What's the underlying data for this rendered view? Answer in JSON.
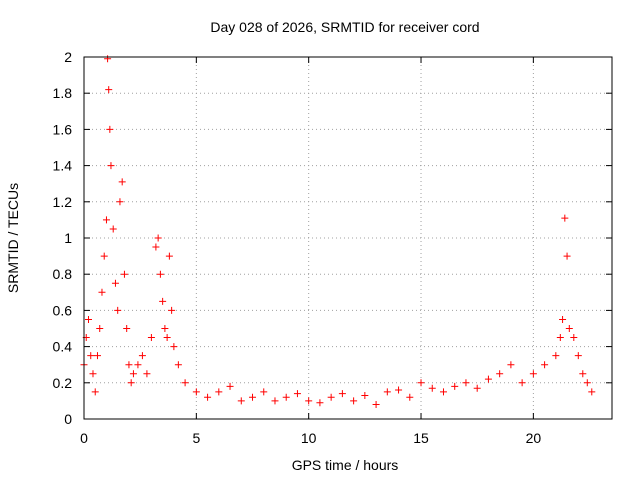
{
  "chart_data": {
    "type": "scatter",
    "title": "Day 028 of 2026, SRMTID for receiver cord",
    "xlabel": "GPS time / hours",
    "ylabel": "SRMTID / TECUs",
    "xlim": [
      0,
      23.5
    ],
    "ylim": [
      0,
      2
    ],
    "xticks": [
      0,
      5,
      10,
      15,
      20
    ],
    "xtick_labels": [
      "0",
      "5",
      "10",
      "15",
      "20"
    ],
    "yticks": [
      0,
      0.2,
      0.4,
      0.6,
      0.8,
      1,
      1.2,
      1.4,
      1.6,
      1.8,
      2
    ],
    "ytick_labels": [
      "0",
      "0.2",
      "0.4",
      "0.6",
      "0.8",
      "1",
      "1.2",
      "1.4",
      "1.6",
      "1.8",
      "2"
    ],
    "grid": true,
    "marker": "+",
    "color": "#ff0000",
    "series": [
      {
        "name": "SRMTID",
        "x": [
          0.0,
          0.1,
          0.2,
          0.3,
          0.4,
          0.5,
          0.6,
          0.7,
          0.8,
          0.9,
          1.0,
          1.05,
          1.1,
          1.15,
          1.2,
          1.3,
          1.4,
          1.5,
          1.6,
          1.7,
          1.8,
          1.9,
          2.0,
          2.1,
          2.2,
          2.4,
          2.6,
          2.8,
          3.0,
          3.2,
          3.3,
          3.4,
          3.5,
          3.6,
          3.7,
          3.8,
          3.9,
          4.0,
          4.2,
          4.5,
          5.0,
          5.5,
          6.0,
          6.5,
          7.0,
          7.5,
          8.0,
          8.5,
          9.0,
          9.5,
          10.0,
          10.5,
          11.0,
          11.5,
          12.0,
          12.5,
          13.0,
          13.5,
          14.0,
          14.5,
          15.0,
          15.5,
          16.0,
          16.5,
          17.0,
          17.5,
          18.0,
          18.5,
          19.0,
          19.5,
          20.0,
          20.5,
          21.0,
          21.2,
          21.3,
          21.4,
          21.5,
          21.6,
          21.8,
          22.0,
          22.2,
          22.4,
          22.6
        ],
        "y": [
          0.3,
          0.45,
          0.55,
          0.35,
          0.25,
          0.15,
          0.35,
          0.5,
          0.7,
          0.9,
          1.1,
          1.99,
          1.82,
          1.6,
          1.4,
          1.05,
          0.75,
          0.6,
          1.2,
          1.31,
          0.8,
          0.5,
          0.3,
          0.2,
          0.25,
          0.3,
          0.35,
          0.25,
          0.45,
          0.95,
          1.0,
          0.8,
          0.65,
          0.5,
          0.45,
          0.9,
          0.6,
          0.4,
          0.3,
          0.2,
          0.15,
          0.12,
          0.15,
          0.18,
          0.1,
          0.12,
          0.15,
          0.1,
          0.12,
          0.14,
          0.1,
          0.09,
          0.12,
          0.14,
          0.1,
          0.13,
          0.08,
          0.15,
          0.16,
          0.12,
          0.2,
          0.17,
          0.15,
          0.18,
          0.2,
          0.17,
          0.22,
          0.25,
          0.3,
          0.2,
          0.25,
          0.3,
          0.35,
          0.45,
          0.55,
          1.11,
          0.9,
          0.5,
          0.45,
          0.35,
          0.25,
          0.2,
          0.15
        ],
        "color": "#ff0000"
      }
    ]
  }
}
